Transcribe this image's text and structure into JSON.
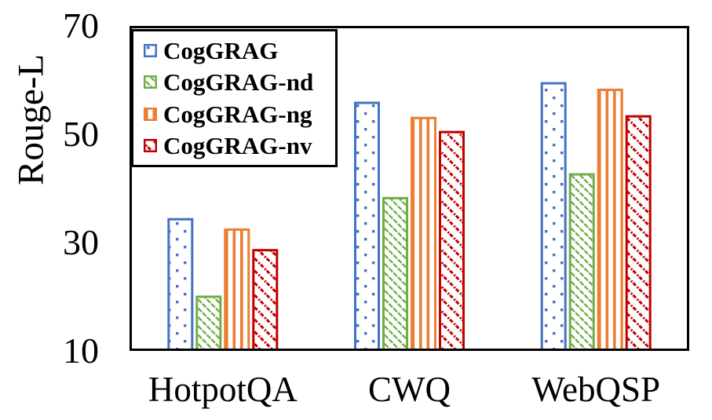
{
  "chart_data": {
    "type": "bar",
    "ylabel": "Rouge-L",
    "categories": [
      "HotpotQA",
      "CWQ",
      "WebQSP"
    ],
    "series": [
      {
        "name": "CogGRAG",
        "color": "#4472C4",
        "pattern": "dots",
        "values": [
          34.3,
          55.8,
          59.4
        ]
      },
      {
        "name": "CogGRAG-nd",
        "color": "#70AD47",
        "pattern": "diag",
        "values": [
          20.0,
          38.2,
          42.6
        ]
      },
      {
        "name": "CogGRAG-ng",
        "color": "#ED7D31",
        "pattern": "vert",
        "values": [
          32.4,
          53.0,
          58.2
        ]
      },
      {
        "name": "CogGRAG-nv",
        "color": "#C00000",
        "pattern": "diagdash",
        "values": [
          28.6,
          50.4,
          53.3
        ]
      }
    ],
    "ylim": [
      10,
      70
    ],
    "yticks": [
      70,
      50,
      30,
      10
    ],
    "grid": false,
    "legend_position": "upper-left",
    "frame": true,
    "axis_color": "#000000"
  }
}
